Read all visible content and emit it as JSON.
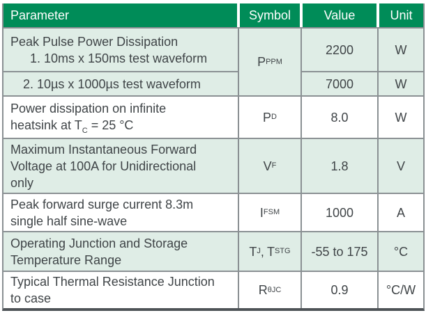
{
  "table": {
    "header": {
      "parameter": "Parameter",
      "symbol": "Symbol",
      "value": "Value",
      "unit": "Unit"
    },
    "rows": [
      {
        "parameter_line1": "Peak Pulse Power Dissipation",
        "parameter_line2": "1. 10ms x 150ms test waveform",
        "symbol_base": "P",
        "symbol_sub": "PPM",
        "value": "2200",
        "unit": "W"
      },
      {
        "parameter": "2. 10µs x 1000µs test waveform",
        "value": "7000",
        "unit": "W"
      },
      {
        "parameter_line1": "Power dissipation on infinite",
        "parameter_line2_pre": "heatsink at T",
        "parameter_line2_sub": "C",
        "parameter_line2_post": " = 25 °C",
        "symbol_base": "P",
        "symbol_sub": "D",
        "value": "8.0",
        "unit": "W"
      },
      {
        "parameter_line1": "Maximum Instantaneous Forward",
        "parameter_line2": "Voltage at 100A for Unidirectional",
        "parameter_line3": "only",
        "symbol_base": "V",
        "symbol_sub": "F",
        "value": "1.8",
        "unit": "V"
      },
      {
        "parameter_line1": "Peak forward surge current 8.3m",
        "parameter_line2": "single half sine-wave",
        "symbol_base": "I",
        "symbol_sub": "FSM",
        "value": "1000",
        "unit": "A"
      },
      {
        "parameter_line1": "Operating Junction and Storage",
        "parameter_line2": "Temperature Range",
        "symbol_base1": "T",
        "symbol_sub1": "J",
        "symbol_sep": ",",
        "symbol_base2": "T",
        "symbol_sub2": "STG",
        "value": "-55 to 175",
        "unit": "°C"
      },
      {
        "parameter_line1": "Typical Thermal Resistance Junction",
        "parameter_line2": "to case",
        "symbol_base": "R",
        "symbol_sub": "θJC",
        "value": "0.9",
        "unit": "°C/W"
      }
    ]
  },
  "colors": {
    "header_bg": "#008c58",
    "row_tint": "#dfede6",
    "grid_border": "#8a9093",
    "bottom_border": "#4e5357",
    "text": "#3f4447",
    "header_text": "#ffffff"
  }
}
